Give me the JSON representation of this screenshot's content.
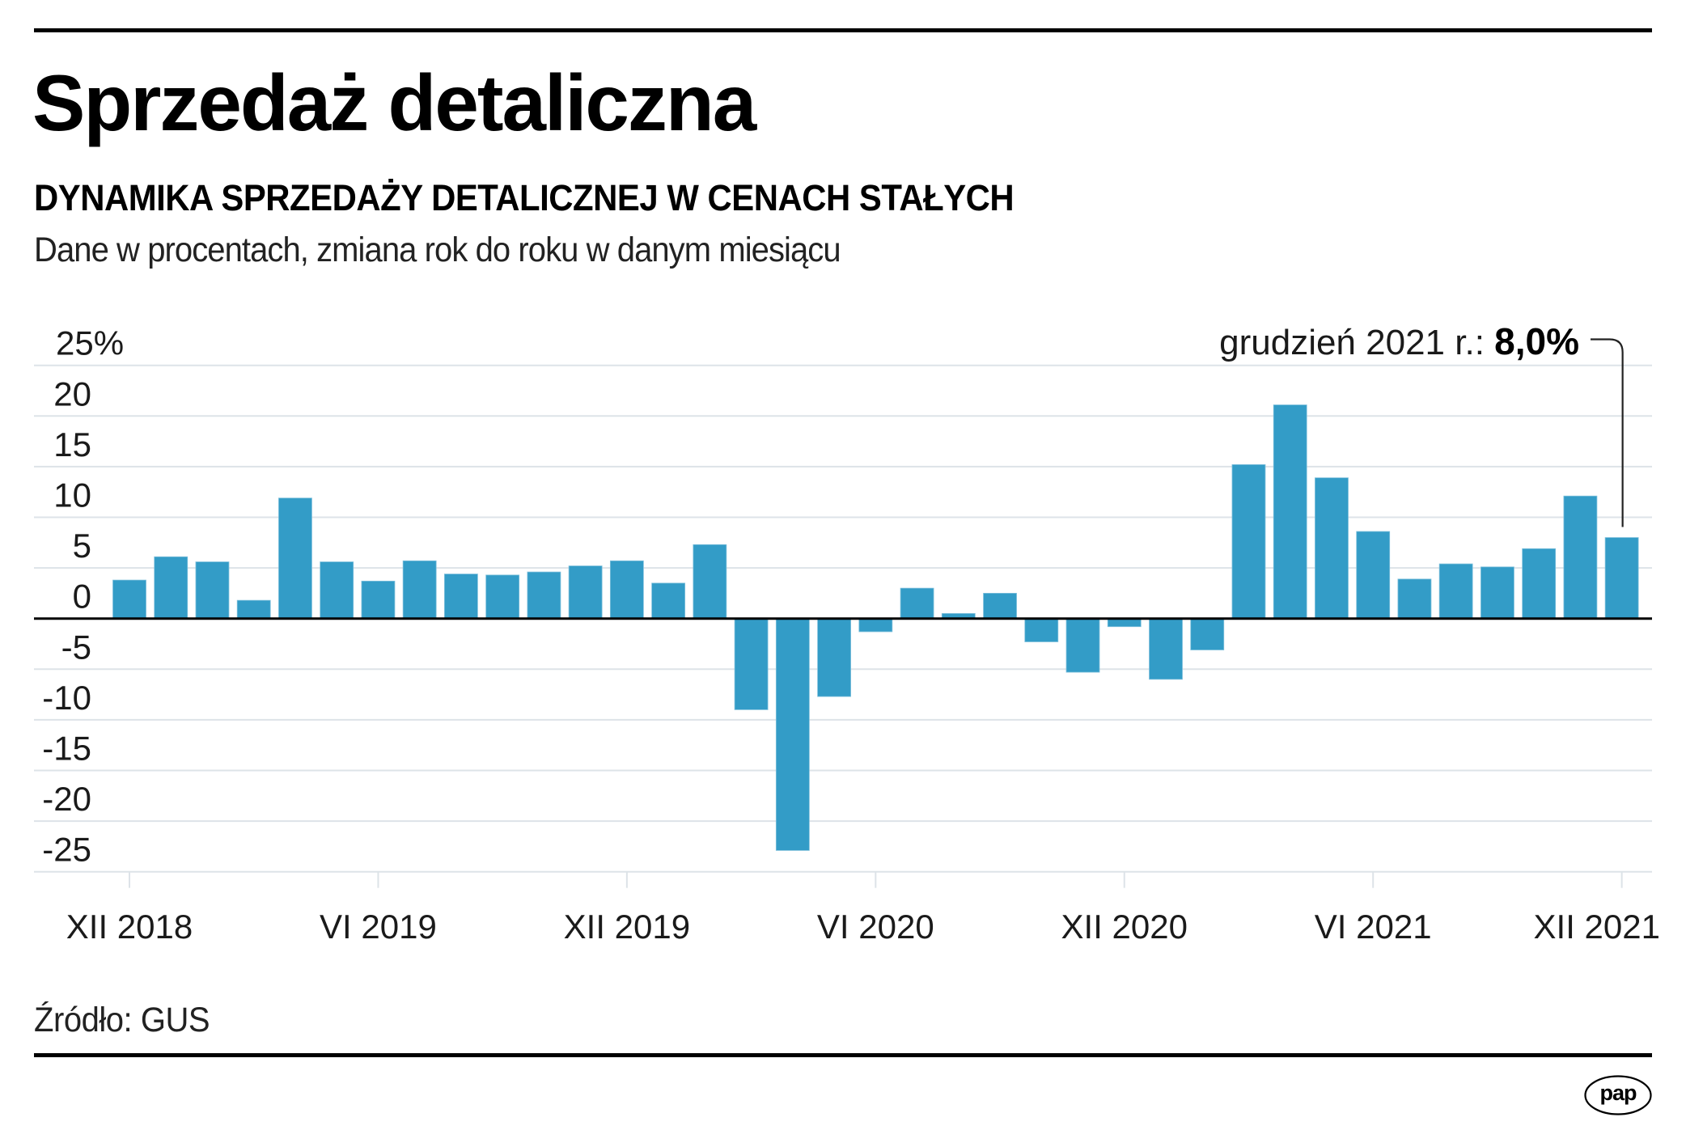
{
  "header": {
    "title": "Sprzedaż detaliczna",
    "subtitle": "DYNAMIKA SPRZEDAŻY DETALICZNEJ W CENACH STAŁYCH",
    "description": "Dane w procentach, zmiana rok do roku w danym miesiącu"
  },
  "footer": {
    "source": "Źródło: GUS",
    "logo_text": "pap"
  },
  "colors": {
    "bar": "#339cc7",
    "grid": "#dde3e8",
    "baseline": "#000000",
    "text": "#1a1a1a"
  },
  "chart_data": {
    "type": "bar",
    "title": "DYNAMIKA SPRZEDAŻY DETALICZNEJ W CENACH STAŁYCH",
    "subtitle": "Dane w procentach, zmiana rok do roku w danym miesiącu",
    "xlabel": "",
    "ylabel": "%",
    "ylim": [
      -25,
      25
    ],
    "yticks": [
      25,
      20,
      15,
      10,
      5,
      0,
      -5,
      -10,
      -15,
      -20,
      -25
    ],
    "ytick_labels": [
      "25%",
      "20",
      "15",
      "10",
      "5",
      "0",
      "-5",
      "-10",
      "-15",
      "-20",
      "-25"
    ],
    "grid": true,
    "categories": [
      "XII 2018",
      "I 2019",
      "II 2019",
      "III 2019",
      "IV 2019",
      "V 2019",
      "VI 2019",
      "VII 2019",
      "VIII 2019",
      "IX 2019",
      "X 2019",
      "XI 2019",
      "XII 2019",
      "I 2020",
      "II 2020",
      "III 2020",
      "IV 2020",
      "V 2020",
      "VI 2020",
      "VII 2020",
      "VIII 2020",
      "IX 2020",
      "X 2020",
      "XI 2020",
      "XII 2020",
      "I 2021",
      "II 2021",
      "III 2021",
      "IV 2021",
      "V 2021",
      "VI 2021",
      "VII 2021",
      "VIII 2021",
      "IX 2021",
      "X 2021",
      "XI 2021",
      "XII 2021"
    ],
    "values": [
      3.8,
      6.1,
      5.6,
      1.8,
      11.9,
      5.6,
      3.7,
      5.7,
      4.4,
      4.3,
      4.6,
      5.2,
      5.7,
      3.5,
      7.3,
      -9.0,
      -22.9,
      -7.7,
      -1.3,
      3.0,
      0.5,
      2.5,
      -2.3,
      -5.3,
      -0.8,
      -6.0,
      -3.1,
      15.2,
      21.1,
      13.9,
      8.6,
      3.9,
      5.4,
      5.1,
      6.9,
      12.1,
      8.0
    ],
    "xtick_labels": [
      {
        "index": 0,
        "label": "XII 2018"
      },
      {
        "index": 6,
        "label": "VI 2019"
      },
      {
        "index": 12,
        "label": "XII 2019"
      },
      {
        "index": 18,
        "label": "VI 2020"
      },
      {
        "index": 24,
        "label": "XII 2020"
      },
      {
        "index": 30,
        "label": "VI 2021"
      },
      {
        "index": 36,
        "label": "XII 2021"
      }
    ],
    "annotation": {
      "index": 36,
      "label": "grudzień 2021 r.: ",
      "value_label": "8,0%"
    },
    "legend": "none"
  }
}
